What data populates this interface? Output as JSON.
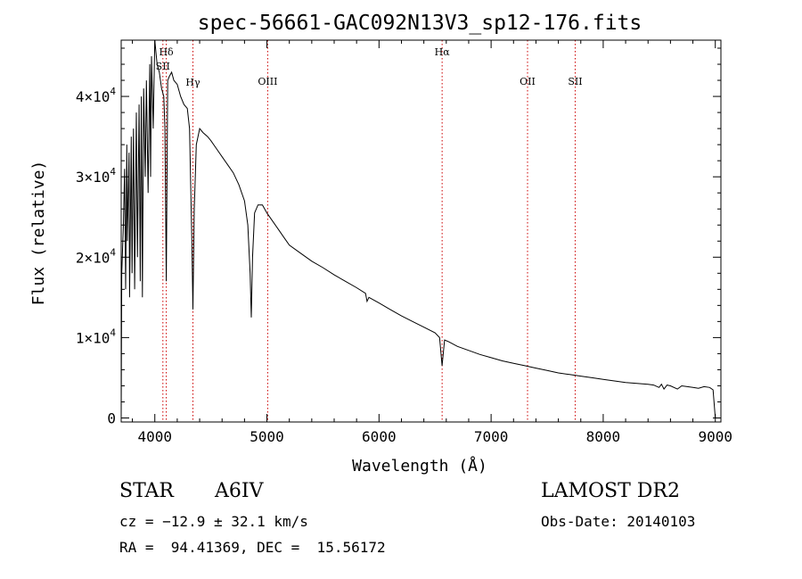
{
  "chart_data": {
    "type": "line",
    "title": "spec-56661-GAC092N13V3_sp12-176.fits",
    "xlabel": "Wavelength (Å)",
    "ylabel": "Flux (relative)",
    "xlim": [
      3700,
      9050
    ],
    "ylim": [
      -500,
      47000
    ],
    "xticks": [
      4000,
      5000,
      6000,
      7000,
      8000,
      9000
    ],
    "yticks": [
      {
        "value": 0,
        "mantissa": "0",
        "exp": ""
      },
      {
        "value": 10000,
        "mantissa": "1×10",
        "exp": "4"
      },
      {
        "value": 20000,
        "mantissa": "2×10",
        "exp": "4"
      },
      {
        "value": 30000,
        "mantissa": "3×10",
        "exp": "4"
      },
      {
        "value": 40000,
        "mantissa": "4×10",
        "exp": "4"
      }
    ],
    "grid": false,
    "line_color": "#000000",
    "marker_color": "#cc0000",
    "lines": [
      {
        "label": "Hδ",
        "wavelength": 4102
      },
      {
        "label": "SII",
        "wavelength": 4072
      },
      {
        "label": "Hγ",
        "wavelength": 4340
      },
      {
        "label": "OIII",
        "wavelength": 5007
      },
      {
        "label": "Hα",
        "wavelength": 6563
      },
      {
        "label": "OII",
        "wavelength": 7325
      },
      {
        "label": "SII",
        "wavelength": 7750
      }
    ],
    "series": [
      {
        "x": [
          3700,
          3705,
          3720,
          3730,
          3740,
          3750,
          3755,
          3770,
          3775,
          3790,
          3797,
          3810,
          3820,
          3835,
          3845,
          3860,
          3870,
          3880,
          3889,
          3900,
          3915,
          3925,
          3940,
          3955,
          3962,
          3970,
          3985,
          4000,
          4020,
          4040,
          4060,
          4080,
          4090,
          4102,
          4115,
          4130,
          4150,
          4170,
          4200,
          4230,
          4260,
          4290,
          4310,
          4330,
          4340,
          4352,
          4370,
          4400,
          4430,
          4470,
          4500,
          4550,
          4600,
          4650,
          4700,
          4750,
          4800,
          4830,
          4850,
          4861,
          4872,
          4890,
          4920,
          4960,
          5000,
          5050,
          5100,
          5150,
          5200,
          5300,
          5400,
          5500,
          5600,
          5700,
          5800,
          5880,
          5893,
          5910,
          6000,
          6100,
          6200,
          6300,
          6400,
          6500,
          6540,
          6563,
          6585,
          6620,
          6700,
          6800,
          6900,
          7000,
          7100,
          7200,
          7300,
          7400,
          7500,
          7600,
          7700,
          7800,
          7900,
          8000,
          8100,
          8200,
          8300,
          8400,
          8450,
          8498,
          8520,
          8542,
          8570,
          8600,
          8662,
          8700,
          8750,
          8800,
          8850,
          8900,
          8950,
          8980,
          9000
        ],
        "y": [
          0,
          18000,
          24000,
          31000,
          16000,
          34000,
          22000,
          33000,
          15000,
          35000,
          18000,
          36000,
          16000,
          38000,
          20000,
          39000,
          17000,
          40000,
          15000,
          41000,
          30000,
          42000,
          28000,
          44000,
          30000,
          45000,
          36000,
          47000,
          44000,
          43000,
          41000,
          40000,
          36000,
          17000,
          42000,
          42500,
          43000,
          42000,
          41500,
          40000,
          39000,
          38500,
          36000,
          22000,
          13500,
          26000,
          34000,
          36000,
          35500,
          35000,
          34500,
          33500,
          32500,
          31500,
          30500,
          29000,
          27000,
          24000,
          18000,
          12500,
          20000,
          25500,
          26500,
          26500,
          25500,
          24500,
          23500,
          22500,
          21500,
          20500,
          19500,
          18700,
          17800,
          17000,
          16200,
          15500,
          14500,
          15000,
          14300,
          13500,
          12700,
          12000,
          11300,
          10600,
          10000,
          6500,
          9700,
          9500,
          8900,
          8400,
          7900,
          7500,
          7100,
          6800,
          6500,
          6200,
          5900,
          5600,
          5400,
          5200,
          5000,
          4800,
          4600,
          4400,
          4300,
          4200,
          4100,
          3800,
          4200,
          3600,
          4100,
          4000,
          3600,
          4000,
          3900,
          3800,
          3700,
          3900,
          3800,
          3500,
          0
        ]
      }
    ]
  },
  "info": {
    "class_label": "STAR",
    "subclass": "A6IV",
    "survey": "LAMOST DR2",
    "cz": "cz = −12.9 ± 32.1 km/s",
    "obs_date": "Obs-Date: 20140103",
    "coords": "RA =  94.41369, DEC =  15.56172"
  }
}
